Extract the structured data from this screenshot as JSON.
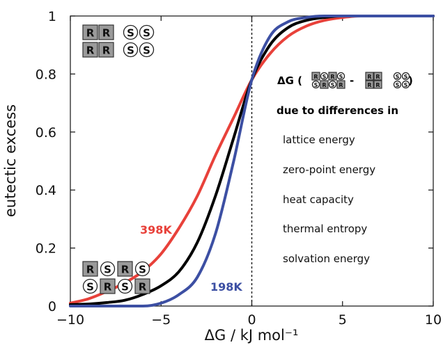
{
  "chart_data": {
    "type": "line",
    "xlabel": "ΔG / kJ mol⁻¹",
    "ylabel": "eutectic excess",
    "xlim": [
      -10,
      10
    ],
    "ylim": [
      0,
      1
    ],
    "xticks": [
      -10,
      -5,
      0,
      5,
      10
    ],
    "yticks": [
      0,
      0.2,
      0.4,
      0.6,
      0.8,
      1
    ],
    "x_tick_labels": [
      "−10",
      "−5",
      "0",
      "5",
      "10"
    ],
    "y_tick_labels": [
      "0",
      "0.2",
      "0.4",
      "0.6",
      "0.8",
      "1"
    ],
    "x": [
      -10,
      -9,
      -8,
      -7,
      -6,
      -5,
      -4,
      -3,
      -2,
      -1,
      0,
      1,
      2,
      3,
      4,
      5,
      6,
      7,
      8,
      9,
      10
    ],
    "series": [
      {
        "name": "198K",
        "color": "#3c4fa3",
        "values": [
          0.0,
          0.0,
          0.0,
          0.0,
          0.0,
          0.01,
          0.04,
          0.1,
          0.25,
          0.5,
          0.78,
          0.93,
          0.98,
          0.995,
          1.0,
          1.0,
          1.0,
          1.0,
          1.0,
          1.0,
          1.0
        ]
      },
      {
        "name": "",
        "color": "#000000",
        "values": [
          0.005,
          0.007,
          0.012,
          0.02,
          0.04,
          0.07,
          0.12,
          0.22,
          0.38,
          0.58,
          0.78,
          0.9,
          0.96,
          0.985,
          0.995,
          1.0,
          1.0,
          1.0,
          1.0,
          1.0,
          1.0
        ]
      },
      {
        "name": "398K",
        "color": "#e8413a",
        "values": [
          0.01,
          0.025,
          0.05,
          0.08,
          0.12,
          0.18,
          0.27,
          0.38,
          0.52,
          0.65,
          0.78,
          0.87,
          0.93,
          0.965,
          0.985,
          0.995,
          1.0,
          1.0,
          1.0,
          1.0,
          1.0
        ]
      }
    ],
    "series_labels": [
      "198K",
      "398K"
    ],
    "reference_line": {
      "x": 0,
      "style": "dotted"
    }
  },
  "annotations": {
    "delta_g_head": "ΔG (",
    "minus": "-",
    "close_paren": ")",
    "reason_title": "due to differences in",
    "items": [
      "lattice energy",
      "zero-point energy",
      "heat capacity",
      "thermal entropy",
      "solvation energy"
    ]
  },
  "crystal_glyphs": {
    "pure_top": [
      "R",
      "R",
      "S",
      "S"
    ],
    "pure_bottom": [
      "R",
      "R",
      "S",
      "S"
    ],
    "racemic_top": [
      "R",
      "S",
      "R",
      "S"
    ],
    "racemic_bottom": [
      "S",
      "R",
      "S",
      "R"
    ],
    "mini_top": [
      "R",
      "S",
      "R",
      "S"
    ],
    "mini_bottom": [
      "S",
      "R",
      "S",
      "R"
    ]
  },
  "colors": {
    "square_fill": "#9a9a9a",
    "square_border": "#333333",
    "circle_border": "#222222"
  }
}
